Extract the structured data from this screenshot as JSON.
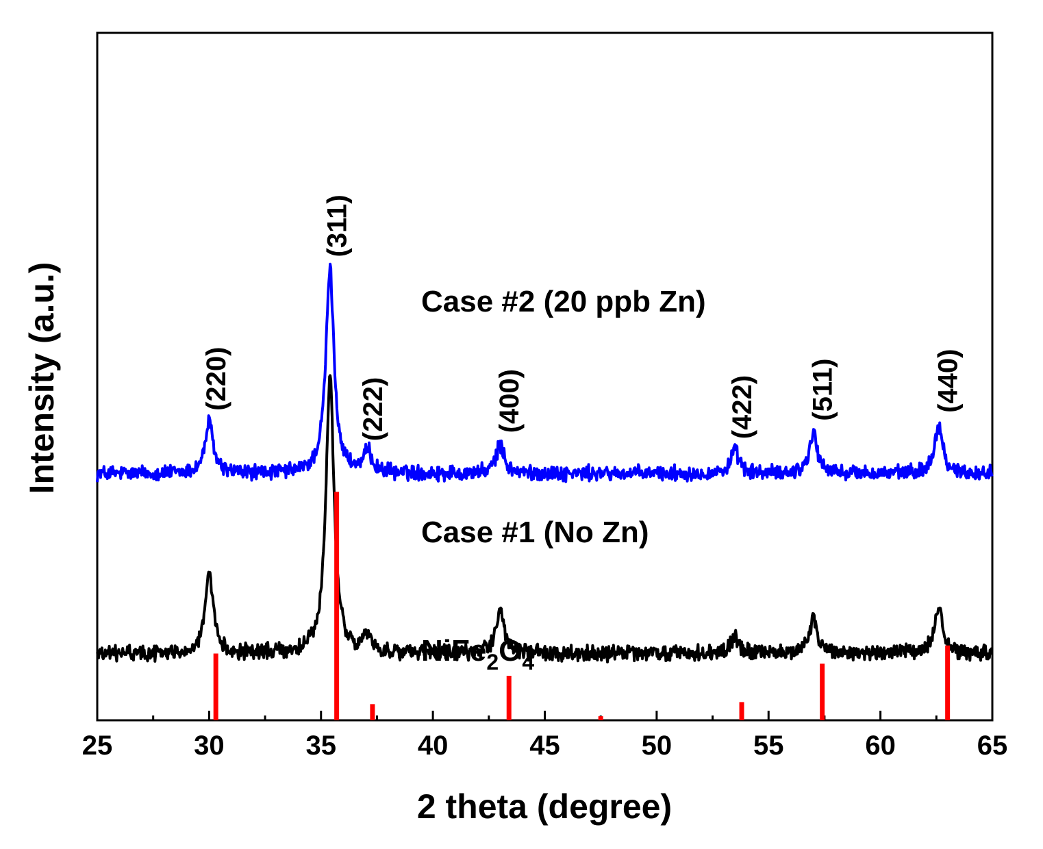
{
  "chart_data": {
    "type": "line",
    "xlabel": "2 theta (degree)",
    "ylabel": "Intensity (a.u.)",
    "xlim": [
      25,
      65
    ],
    "xticks": [
      "25",
      "30",
      "35",
      "40",
      "45",
      "50",
      "55",
      "60",
      "65"
    ],
    "yticks_shown": false,
    "colors": {
      "case2": "#0000ff",
      "case1": "#000000",
      "reference": "#ff0000",
      "axes": "#000000"
    },
    "series": [
      {
        "name": "Case #2 (20 ppb Zn)",
        "color": "#0000ff",
        "baseline": 6.1,
        "noise": 0.15,
        "peaks": [
          {
            "x": 30.0,
            "h": 1.25
          },
          {
            "x": 35.4,
            "h": 5.05
          },
          {
            "x": 37.1,
            "h": 0.5
          },
          {
            "x": 43.0,
            "h": 0.7
          },
          {
            "x": 53.5,
            "h": 0.55
          },
          {
            "x": 57.0,
            "h": 1.0
          },
          {
            "x": 62.6,
            "h": 1.2
          }
        ]
      },
      {
        "name": "Case #1 (No Zn)",
        "color": "#000000",
        "baseline": 1.65,
        "noise": 0.15,
        "peaks": [
          {
            "x": 30.0,
            "h": 1.9
          },
          {
            "x": 35.4,
            "h": 6.8
          },
          {
            "x": 37.1,
            "h": 0.4
          },
          {
            "x": 43.0,
            "h": 1.1
          },
          {
            "x": 53.5,
            "h": 0.4
          },
          {
            "x": 57.0,
            "h": 0.85
          },
          {
            "x": 62.6,
            "h": 1.15
          }
        ]
      }
    ],
    "reference": {
      "name": "NiFe2O4",
      "label_main": "NiFe",
      "label_sub1": "2",
      "label_mid": "O",
      "label_sub2": "4",
      "sticks": [
        {
          "x": 30.3,
          "h": 1.65
        },
        {
          "x": 35.7,
          "h": 5.65
        },
        {
          "x": 37.3,
          "h": 0.4
        },
        {
          "x": 43.4,
          "h": 1.1
        },
        {
          "x": 47.5,
          "h": 0.1
        },
        {
          "x": 53.8,
          "h": 0.45
        },
        {
          "x": 57.4,
          "h": 1.4
        },
        {
          "x": 63.0,
          "h": 1.85
        }
      ]
    },
    "peak_labels": [
      {
        "text": "(220)",
        "x": 30.3
      },
      {
        "text": "(311)",
        "x": 35.7
      },
      {
        "text": "(222)",
        "x": 37.3
      },
      {
        "text": "(400)",
        "x": 43.4
      },
      {
        "text": "(422)",
        "x": 53.8
      },
      {
        "text": "(511)",
        "x": 57.4
      },
      {
        "text": "(440)",
        "x": 63.0
      }
    ]
  }
}
